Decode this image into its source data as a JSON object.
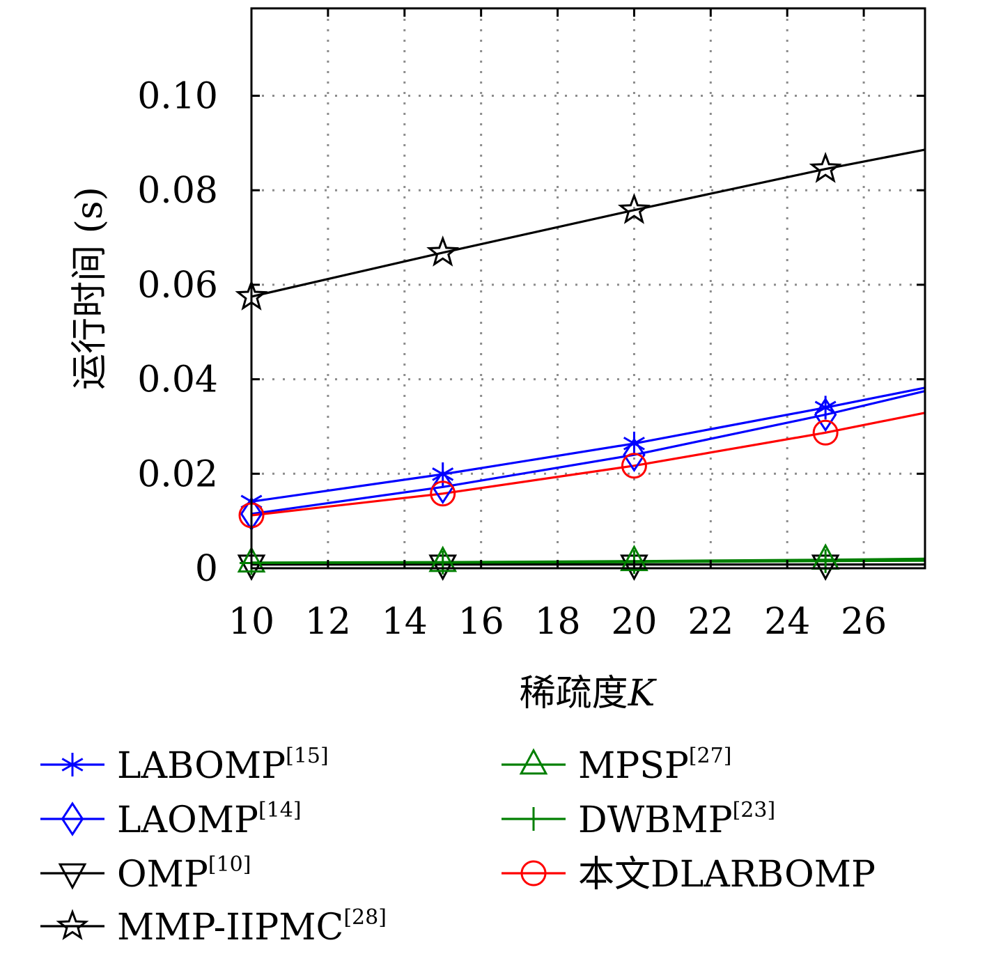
{
  "chart_data": {
    "type": "line",
    "xlabel": "稀疏度",
    "xlabel_var": "K",
    "ylabel": "运行时间 (s)",
    "xlim": [
      10,
      27.6
    ],
    "ylim": [
      0,
      0.1185
    ],
    "xticks": [
      10,
      12,
      14,
      16,
      18,
      20,
      22,
      24,
      26
    ],
    "xtick_labels": [
      "10",
      "12",
      "14",
      "16",
      "18",
      "20",
      "22",
      "24",
      "26"
    ],
    "yticks": [
      0,
      0.02,
      0.04,
      0.06,
      0.08,
      0.1
    ],
    "ytick_labels": [
      "0",
      "0.02",
      "0.04",
      "0.06",
      "0.08",
      "0.10"
    ],
    "grid": true,
    "legend_position": "bottom",
    "series": [
      {
        "name": "LABOMP",
        "ref": "[15]",
        "color": "#0000ff",
        "marker": "asterisk",
        "x": [
          10,
          15,
          20,
          25,
          27.6
        ],
        "y": [
          0.0141,
          0.0199,
          0.0264,
          0.034,
          0.0382
        ],
        "marker_x": [
          10,
          15,
          20,
          25
        ]
      },
      {
        "name": "LAOMP",
        "ref": "[14]",
        "color": "#0000ff",
        "marker": "diamond",
        "x": [
          10,
          15,
          20,
          25,
          27.6
        ],
        "y": [
          0.0115,
          0.0172,
          0.024,
          0.0325,
          0.0375
        ],
        "marker_x": [
          10,
          15,
          20,
          25
        ]
      },
      {
        "name": "OMP",
        "ref": "[10]",
        "color": "#000000",
        "marker": "triangle-down",
        "x": [
          10,
          15,
          20,
          25,
          27.6
        ],
        "y": [
          0.0008,
          0.0008,
          0.0008,
          0.0008,
          0.0008
        ],
        "marker_x": [
          10,
          15,
          20,
          25
        ]
      },
      {
        "name": "MMP-IIPMC",
        "ref": "[28]",
        "color": "#000000",
        "marker": "star",
        "x": [
          10,
          15,
          20,
          25,
          27.6
        ],
        "y": [
          0.0575,
          0.0668,
          0.0758,
          0.0845,
          0.0886
        ],
        "marker_x": [
          10,
          15,
          20,
          25
        ]
      },
      {
        "name": "MPSP",
        "ref": "[27]",
        "color": "#007f00",
        "marker": "triangle-up",
        "x": [
          10,
          15,
          20,
          25,
          27.6
        ],
        "y": [
          0.0012,
          0.0013,
          0.0015,
          0.0018,
          0.002
        ],
        "marker_x": [
          10,
          15,
          20,
          25
        ]
      },
      {
        "name": "DWBMP",
        "ref": "[23]",
        "color": "#007f00",
        "marker": "plus",
        "x": [
          10,
          15,
          20,
          25,
          27.6
        ],
        "y": [
          0.0011,
          0.0012,
          0.0013,
          0.0015,
          0.0016
        ],
        "marker_x": [
          10,
          15,
          20,
          25
        ]
      },
      {
        "name": "本文DLARBOMP",
        "ref": "",
        "color": "#ff0000",
        "marker": "circle",
        "x": [
          10,
          15,
          20,
          25,
          27.6
        ],
        "y": [
          0.0112,
          0.0158,
          0.0217,
          0.0287,
          0.0329
        ],
        "marker_x": [
          10,
          15,
          20,
          25
        ]
      }
    ]
  }
}
